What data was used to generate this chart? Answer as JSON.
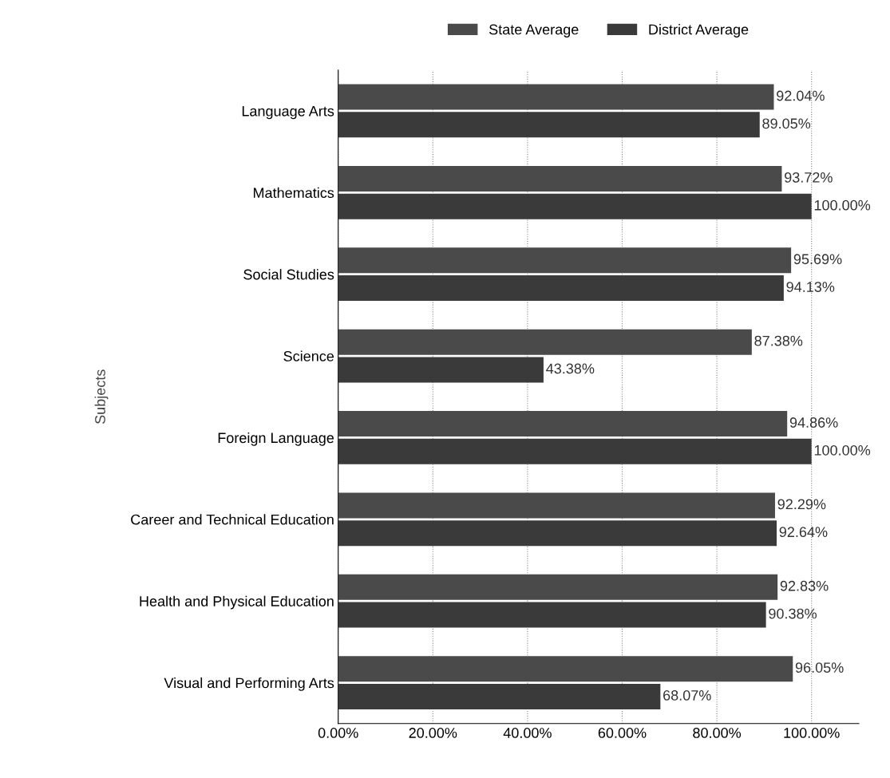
{
  "chart_data": {
    "type": "bar",
    "orientation": "horizontal",
    "ylabel": "Subjects",
    "categories": [
      "Language Arts",
      "Mathematics",
      "Social Studies",
      "Science",
      "Foreign Language",
      "Career and Technical Education",
      "Health and Physical Education",
      "Visual and Performing Arts"
    ],
    "series": [
      {
        "name": "State Average",
        "color": "#4a4a4a",
        "values": [
          92.04,
          93.72,
          95.69,
          87.38,
          94.86,
          92.29,
          92.83,
          96.05
        ],
        "value_labels": [
          "92.04%",
          "93.72%",
          "95.69%",
          "87.38%",
          "94.86%",
          "92.29%",
          "92.83%",
          "96.05%"
        ]
      },
      {
        "name": "District Average",
        "color": "#3a3a3a",
        "values": [
          89.05,
          100.0,
          94.13,
          43.38,
          100.0,
          92.64,
          90.38,
          68.07
        ],
        "value_labels": [
          "89.05%",
          "100.00%",
          "94.13%",
          "43.38%",
          "100.00%",
          "92.64%",
          "90.38%",
          "68.07%"
        ]
      }
    ],
    "xlim": [
      0,
      110
    ],
    "xticks": [
      {
        "value": 0,
        "label": "0.00%"
      },
      {
        "value": 20,
        "label": "20.00%"
      },
      {
        "value": 40,
        "label": "40.00%"
      },
      {
        "value": 60,
        "label": "60.00%"
      },
      {
        "value": 80,
        "label": "80.00%"
      },
      {
        "value": 100,
        "label": "100.00%"
      }
    ],
    "grid": "x",
    "legend": "top"
  }
}
